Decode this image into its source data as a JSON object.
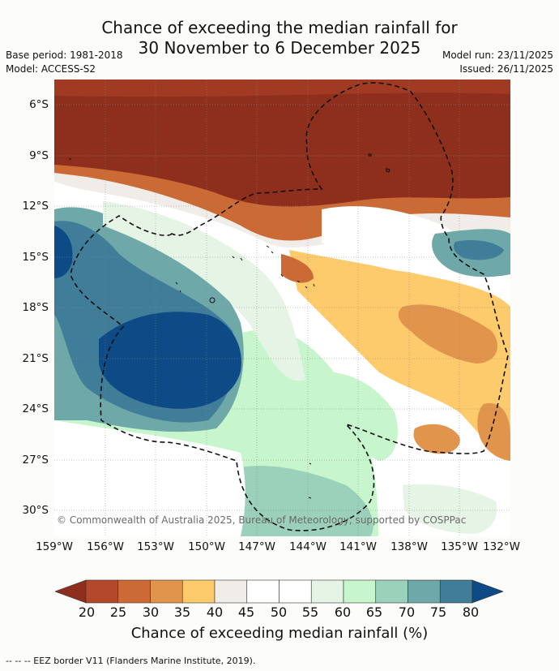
{
  "title": {
    "line1": "Chance of exceeding the median rainfall for",
    "line2": "30 November to 6 December 2025"
  },
  "meta": {
    "base_period": "Base period: 1981-2018",
    "model": "Model: ACCESS-S2",
    "model_run": "Model run: 23/11/2025",
    "issued": "Issued: 26/11/2025"
  },
  "map": {
    "lat_labels": [
      "6°S",
      "9°S",
      "12°S",
      "15°S",
      "18°S",
      "21°S",
      "24°S",
      "27°S",
      "30°S"
    ],
    "lon_labels": [
      "159°W",
      "156°W",
      "153°W",
      "150°W",
      "147°W",
      "144°W",
      "141°W",
      "138°W",
      "135°W",
      "132°W"
    ],
    "copyright": "© Commonwealth of Australia 2025, Bureau of Meteorology, supported by COSPPac"
  },
  "colorbar": {
    "ticks": [
      "20",
      "25",
      "30",
      "35",
      "40",
      "45",
      "50",
      "55",
      "60",
      "65",
      "70",
      "75",
      "80"
    ],
    "title": "Chance of exceeding median rainfall (%)",
    "colors": [
      "#8e2e1c",
      "#b3482a",
      "#cc6a35",
      "#e1944c",
      "#fdca6c",
      "#f0ece8",
      "#ffffff",
      "#ffffff",
      "#e6f4e6",
      "#c8f6cc",
      "#9bd0ba",
      "#6ea8a8",
      "#3f7d99",
      "#0e4a86"
    ]
  },
  "footer": "--  --  -- EEZ border V11 (Flanders Marine Institute, 2019)."
}
